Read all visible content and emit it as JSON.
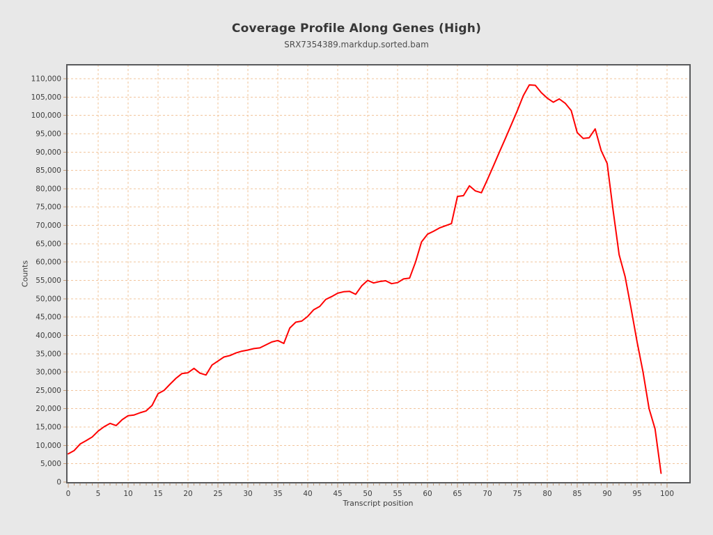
{
  "page": {
    "background_color": "#e8e8e8"
  },
  "chart_data": {
    "type": "line",
    "title": "Coverage Profile Along Genes (High)",
    "subtitle": "SRX7354389.markdup.sorted.bam",
    "xlabel": "Transcript position",
    "ylabel": "Counts",
    "x_positions": {
      "from": 0,
      "to": 99,
      "step": 1
    },
    "series": [
      {
        "name": "SRX7354389.markdup.sorted.bam",
        "color": "#ff0000",
        "values": [
          7700,
          8600,
          10400,
          11300,
          12300,
          13900,
          15100,
          16000,
          15400,
          17000,
          18100,
          18300,
          18900,
          19400,
          20900,
          24100,
          25000,
          26700,
          28300,
          29600,
          29800,
          31000,
          29700,
          29200,
          31900,
          33000,
          34100,
          34500,
          35200,
          35700,
          36000,
          36400,
          36600,
          37400,
          38200,
          38600,
          37800,
          42000,
          43600,
          43900,
          45200,
          47000,
          47900,
          49800,
          50600,
          51500,
          51900,
          52000,
          51200,
          53500,
          55000,
          54300,
          54700,
          54900,
          54100,
          54400,
          55400,
          55600,
          60000,
          65500,
          67600,
          68400,
          69300,
          69900,
          70500,
          77900,
          78100,
          80800,
          79400,
          78900,
          82500,
          86200,
          90000,
          93700,
          97500,
          101300,
          105400,
          108300,
          108200,
          106200,
          104700,
          103600,
          104500,
          103300,
          101300,
          95300,
          93700,
          93900,
          96300,
          90400,
          86900,
          74000,
          62000,
          56000,
          47300,
          38200,
          29900,
          20000,
          14500,
          2400
        ]
      }
    ],
    "xlim": [
      0,
      104
    ],
    "ylim": [
      0,
      115000
    ],
    "x_tick_step": 5,
    "x_minor_tick_step": 1,
    "y_tick_step": 5000,
    "x_tick_labels": [
      "0",
      "5",
      "10",
      "15",
      "20",
      "25",
      "30",
      "35",
      "40",
      "45",
      "50",
      "55",
      "60",
      "65",
      "70",
      "75",
      "80",
      "85",
      "90",
      "95",
      "100"
    ],
    "y_tick_labels": [
      "0",
      "5,000",
      "10,000",
      "15,000",
      "20,000",
      "25,000",
      "30,000",
      "35,000",
      "40,000",
      "45,000",
      "50,000",
      "55,000",
      "60,000",
      "65,000",
      "70,000",
      "75,000",
      "80,000",
      "85,000",
      "90,000",
      "95,000",
      "100,000",
      "105,000",
      "110,000"
    ],
    "grid": "dashed, both axes",
    "legend": "none",
    "colors": {
      "line": "#ff0000",
      "grid": "#f2c49b",
      "frame": "#58595b",
      "plot_background": "#ffffff",
      "page_background": "#e8e8e8",
      "tick_mark": "#c49a76",
      "tick_text": "#3c3c3c"
    }
  }
}
